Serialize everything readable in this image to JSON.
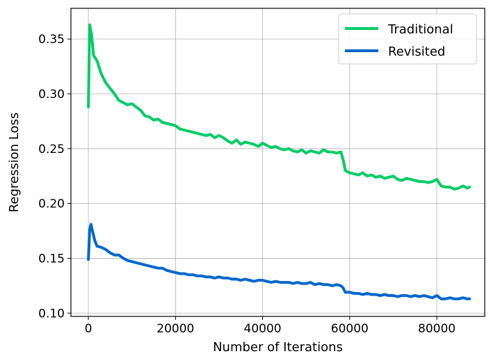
{
  "chart_data": {
    "type": "line",
    "xlabel": "Number of Iterations",
    "ylabel": "Regression Loss",
    "xlim": [
      -4000,
      91000
    ],
    "ylim": [
      0.097,
      0.378
    ],
    "xticks": [
      0,
      20000,
      40000,
      60000,
      80000
    ],
    "xtick_labels": [
      "0",
      "20000",
      "40000",
      "60000",
      "80000"
    ],
    "yticks": [
      0.1,
      0.15,
      0.2,
      0.25,
      0.3,
      0.35
    ],
    "ytick_labels": [
      "0.10",
      "0.15",
      "0.20",
      "0.25",
      "0.30",
      "0.35"
    ],
    "grid": true,
    "legend_position": "top-right",
    "series": [
      {
        "name": "Traditional",
        "color": "#00cc66",
        "x": [
          0,
          300,
          700,
          1200,
          2000,
          3000,
          4000,
          5000,
          6000,
          7000,
          8000,
          9000,
          10000,
          11000,
          12000,
          13000,
          14000,
          15000,
          16000,
          17000,
          18000,
          19000,
          20000,
          21000,
          22000,
          23000,
          24000,
          25000,
          26000,
          27000,
          28000,
          29000,
          30000,
          31000,
          32000,
          33000,
          34000,
          35000,
          36000,
          37000,
          38000,
          39000,
          40000,
          41000,
          42000,
          43000,
          44000,
          45000,
          46000,
          47000,
          48000,
          49000,
          50000,
          51000,
          52000,
          53000,
          54000,
          55000,
          56000,
          57000,
          58000,
          58500,
          59000,
          60000,
          61000,
          62000,
          63000,
          64000,
          65000,
          66000,
          67000,
          68000,
          69000,
          70000,
          71000,
          72000,
          73000,
          74000,
          75000,
          76000,
          77000,
          78000,
          79000,
          80000,
          81000,
          82000,
          83000,
          84000,
          85000,
          86000,
          87000,
          87500
        ],
        "y": [
          0.288,
          0.363,
          0.355,
          0.335,
          0.33,
          0.318,
          0.31,
          0.305,
          0.3,
          0.294,
          0.292,
          0.29,
          0.291,
          0.288,
          0.285,
          0.28,
          0.279,
          0.276,
          0.277,
          0.274,
          0.273,
          0.272,
          0.271,
          0.268,
          0.267,
          0.266,
          0.265,
          0.264,
          0.263,
          0.262,
          0.263,
          0.26,
          0.262,
          0.26,
          0.257,
          0.255,
          0.258,
          0.254,
          0.256,
          0.255,
          0.254,
          0.252,
          0.255,
          0.253,
          0.251,
          0.252,
          0.25,
          0.249,
          0.25,
          0.248,
          0.247,
          0.249,
          0.246,
          0.248,
          0.247,
          0.246,
          0.249,
          0.247,
          0.247,
          0.246,
          0.247,
          0.24,
          0.23,
          0.228,
          0.227,
          0.226,
          0.228,
          0.225,
          0.226,
          0.224,
          0.225,
          0.223,
          0.224,
          0.225,
          0.222,
          0.221,
          0.223,
          0.222,
          0.221,
          0.22,
          0.22,
          0.219,
          0.22,
          0.222,
          0.216,
          0.215,
          0.215,
          0.213,
          0.214,
          0.216,
          0.214,
          0.215
        ]
      },
      {
        "name": "Revisited",
        "color": "#0066cc",
        "x": [
          0,
          300,
          600,
          1000,
          1500,
          2000,
          3000,
          4000,
          5000,
          6000,
          7000,
          8000,
          9000,
          10000,
          11000,
          12000,
          13000,
          14000,
          15000,
          16000,
          17000,
          18000,
          19000,
          20000,
          21000,
          22000,
          23000,
          24000,
          25000,
          26000,
          27000,
          28000,
          29000,
          30000,
          31000,
          32000,
          33000,
          34000,
          35000,
          36000,
          37000,
          38000,
          39000,
          40000,
          41000,
          42000,
          43000,
          44000,
          45000,
          46000,
          47000,
          48000,
          49000,
          50000,
          51000,
          52000,
          53000,
          54000,
          55000,
          56000,
          57000,
          58000,
          58500,
          59000,
          60000,
          61000,
          62000,
          63000,
          64000,
          65000,
          66000,
          67000,
          68000,
          69000,
          70000,
          71000,
          72000,
          73000,
          74000,
          75000,
          76000,
          77000,
          78000,
          79000,
          80000,
          81000,
          82000,
          83000,
          84000,
          85000,
          86000,
          87000,
          87500
        ],
        "y": [
          0.149,
          0.176,
          0.181,
          0.174,
          0.166,
          0.161,
          0.16,
          0.158,
          0.155,
          0.153,
          0.153,
          0.15,
          0.148,
          0.147,
          0.146,
          0.145,
          0.144,
          0.143,
          0.142,
          0.141,
          0.141,
          0.139,
          0.138,
          0.137,
          0.136,
          0.136,
          0.135,
          0.135,
          0.134,
          0.134,
          0.133,
          0.133,
          0.132,
          0.133,
          0.132,
          0.132,
          0.131,
          0.131,
          0.13,
          0.131,
          0.13,
          0.129,
          0.13,
          0.13,
          0.129,
          0.128,
          0.129,
          0.128,
          0.128,
          0.128,
          0.127,
          0.128,
          0.127,
          0.127,
          0.128,
          0.126,
          0.127,
          0.126,
          0.126,
          0.125,
          0.126,
          0.125,
          0.123,
          0.119,
          0.119,
          0.118,
          0.118,
          0.117,
          0.118,
          0.117,
          0.117,
          0.116,
          0.117,
          0.116,
          0.116,
          0.115,
          0.116,
          0.116,
          0.115,
          0.116,
          0.115,
          0.116,
          0.115,
          0.114,
          0.116,
          0.113,
          0.113,
          0.114,
          0.113,
          0.113,
          0.114,
          0.113,
          0.113
        ]
      }
    ]
  }
}
